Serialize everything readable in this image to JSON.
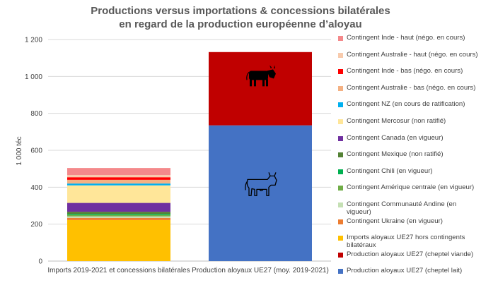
{
  "chart_data": {
    "type": "bar",
    "stacked": true,
    "title": [
      "Productions versus importations & concessions bilatérales",
      "en regard de la production européenne d’aloyau"
    ],
    "ylabel": "1 000 téc",
    "ylim": [
      0,
      1200
    ],
    "yticks": [
      0,
      200,
      400,
      600,
      800,
      1000,
      1200
    ],
    "ytick_labels": [
      "0",
      "200",
      "400",
      "600",
      "800",
      "1 000",
      "1 200"
    ],
    "grid": true,
    "legend_position": "right",
    "categories": [
      "Imports 2019-2021 et concessions bilatérales",
      "Production aloyaux UE27 (moy. 2019-2021)"
    ],
    "series": [
      {
        "name": "Production aloyaux UE27 (cheptel lait)",
        "color": "#4472C4",
        "values": [
          0,
          735
        ]
      },
      {
        "name": "Production aloyaux UE27 (cheptel viande)",
        "color": "#C00000",
        "values": [
          0,
          397
        ]
      },
      {
        "name": "Imports aloyaux UE27 hors contingents bilatéraux",
        "color": "#FFC000",
        "values": [
          222,
          0
        ]
      },
      {
        "name": "Contingent Ukraine (en vigueur)",
        "color": "#ED7D31",
        "values": [
          12,
          0
        ]
      },
      {
        "name": "Contingent Communauté Andine (en vigueur)",
        "color": "#C5E0B4",
        "values": [
          8,
          0
        ]
      },
      {
        "name": "Contingent Amérique centrale (en vigueur)",
        "color": "#70AD47",
        "values": [
          9,
          0
        ]
      },
      {
        "name": "Contingent Chili (en vigueur)",
        "color": "#00B050",
        "values": [
          5,
          0
        ]
      },
      {
        "name": "Contingent Mexique (non ratifié)",
        "color": "#548235",
        "values": [
          11,
          0
        ]
      },
      {
        "name": "Contingent Canada (en vigueur)",
        "color": "#7030A0",
        "values": [
          48,
          0
        ]
      },
      {
        "name": "Contingent Mercosur (non ratifié)",
        "color": "#FFE699",
        "values": [
          95,
          0
        ]
      },
      {
        "name": "Contingent NZ (en cours de ratification)",
        "color": "#00B0F0",
        "values": [
          10,
          0
        ]
      },
      {
        "name": "Contingent Australie - bas (négo. en cours)",
        "color": "#F4B183",
        "values": [
          20,
          0
        ]
      },
      {
        "name": "Contingent Inde - bas (négo. en cours)",
        "color": "#FF0000",
        "values": [
          14,
          0
        ]
      },
      {
        "name": "Contingent Australie - haut  (négo. en cours)",
        "color": "#F8CBAD",
        "values": [
          12,
          0
        ]
      },
      {
        "name": "Contingent Inde - haut (négo. en cours)",
        "color": "#F4898B",
        "values": [
          38,
          0
        ]
      }
    ],
    "icons": [
      {
        "name": "cow-solid-icon",
        "category": 1,
        "y": 1000
      },
      {
        "name": "cow-outline-icon",
        "category": 1,
        "y": 415
      }
    ]
  }
}
